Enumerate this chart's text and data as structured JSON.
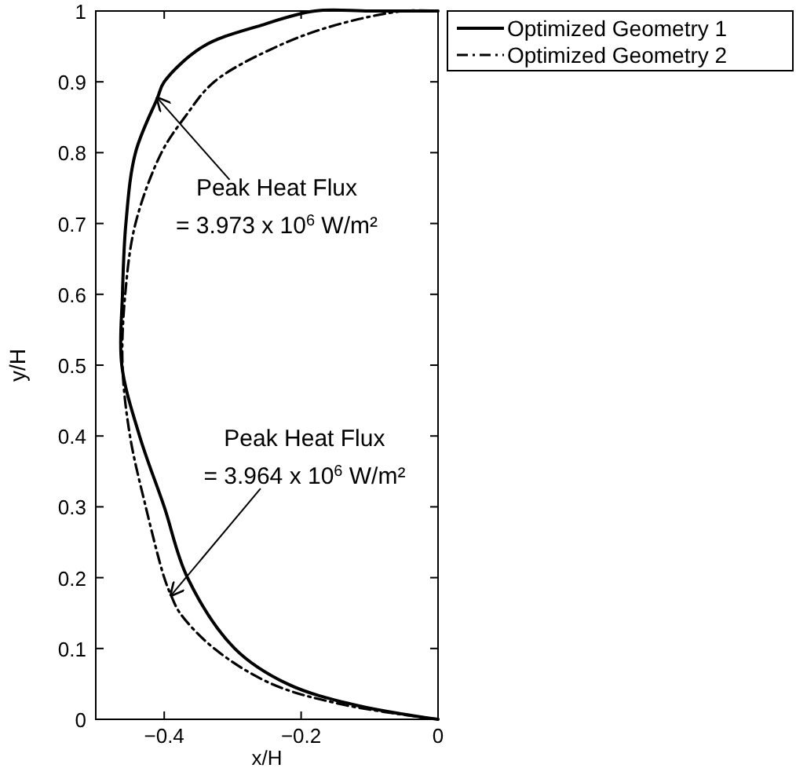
{
  "chart_data": {
    "type": "line",
    "xlabel": "x/H",
    "ylabel": "y/H",
    "xlim": [
      -0.5,
      0
    ],
    "ylim": [
      0,
      1
    ],
    "xticks": [
      {
        "value": -0.4,
        "label": "−0.4"
      },
      {
        "value": -0.2,
        "label": "−0.2"
      },
      0
    ],
    "yticks": [
      0,
      0.1,
      0.2,
      0.3,
      0.4,
      0.5,
      0.6,
      0.7,
      0.8,
      0.9,
      1
    ],
    "grid": false,
    "legend": "top right",
    "marker": "none",
    "series": [
      {
        "name": "Optimized Geometry 1",
        "color": "#000000",
        "line_style": "solid",
        "x": [
          0,
          -0.12,
          -0.22,
          -0.297,
          -0.366,
          -0.4,
          -0.436,
          -0.462,
          -0.461,
          -0.456,
          -0.442,
          -0.41,
          -0.4,
          -0.343,
          -0.258,
          -0.18,
          -0.1,
          0
        ],
        "values": [
          0,
          0.02,
          0.05,
          0.1,
          0.2,
          0.3,
          0.4,
          0.5,
          0.6,
          0.7,
          0.8,
          0.877,
          0.9,
          0.95,
          0.98,
          1,
          1,
          1
        ]
      },
      {
        "name": "Optimized Geometry 2",
        "color": "#000000",
        "line_style": "dashdot",
        "x": [
          0,
          -0.135,
          -0.243,
          -0.327,
          -0.377,
          -0.39,
          -0.4,
          -0.427,
          -0.45,
          -0.461,
          -0.457,
          -0.442,
          -0.404,
          -0.37,
          -0.327,
          -0.235,
          -0.15,
          -0.05,
          0
        ],
        "values": [
          0,
          0.02,
          0.05,
          0.1,
          0.15,
          0.175,
          0.2,
          0.3,
          0.4,
          0.5,
          0.6,
          0.7,
          0.8,
          0.85,
          0.9,
          0.95,
          0.98,
          1,
          1
        ]
      }
    ],
    "annotations": [
      {
        "text": "Peak Heat Flux\n= 3.973 x 10$^{6}$ W/m²",
        "x": -0.41,
        "y": 0.877
      },
      {
        "text": "Peak Heat Flux\n= 3.964 x 10$^{6}$ W/m²",
        "x": -0.39,
        "y": 0.175
      }
    ]
  }
}
